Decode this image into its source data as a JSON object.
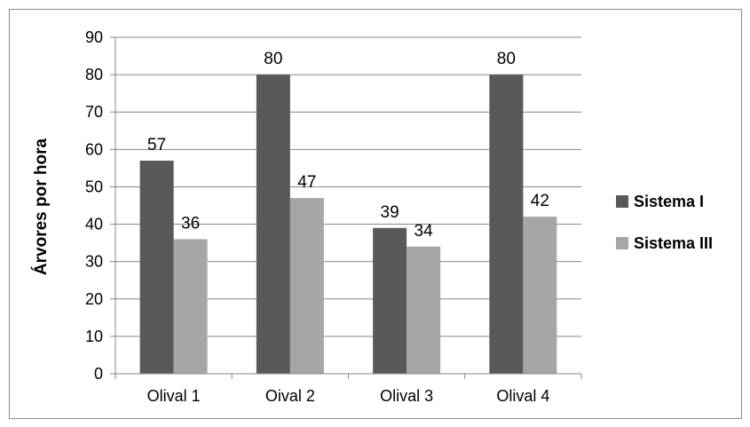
{
  "chart_data": {
    "type": "bar",
    "title": "",
    "xlabel": "",
    "ylabel": "Árvores por hora",
    "categories": [
      "Olival 1",
      "Oival 2",
      "Olival 3",
      "Olival 4"
    ],
    "series": [
      {
        "name": "Sistema I",
        "values": [
          57,
          80,
          39,
          80
        ],
        "color": "#595959"
      },
      {
        "name": "Sistema III",
        "values": [
          36,
          47,
          34,
          42
        ],
        "color": "#a6a6a6"
      }
    ],
    "ylim": [
      0,
      90
    ],
    "yticks": [
      0,
      10,
      20,
      30,
      40,
      50,
      60,
      70,
      80,
      90
    ],
    "grid": true,
    "legend_position": "right",
    "data_labels": true
  }
}
